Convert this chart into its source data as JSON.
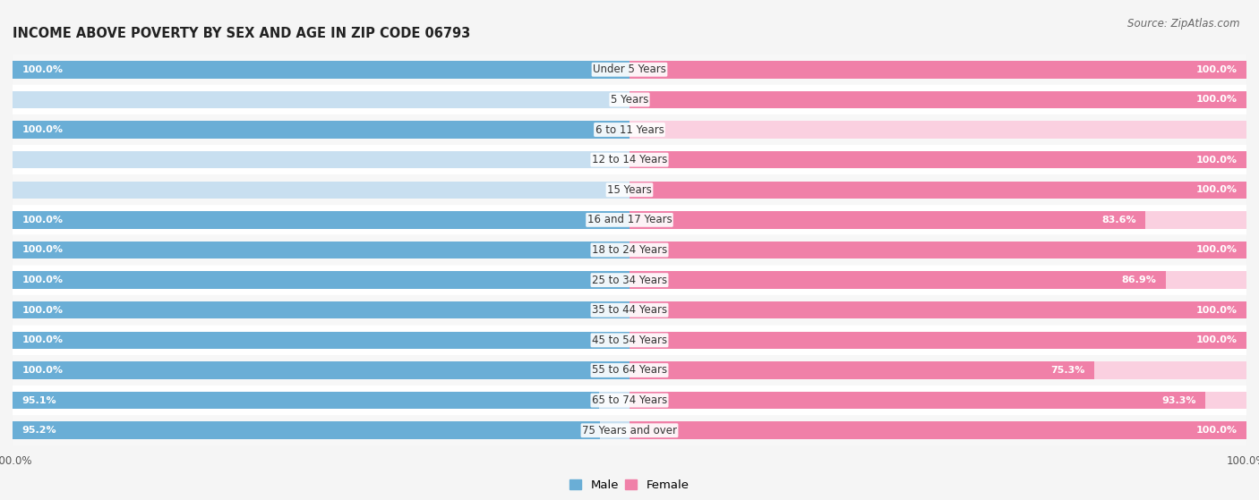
{
  "title": "INCOME ABOVE POVERTY BY SEX AND AGE IN ZIP CODE 06793",
  "source": "Source: ZipAtlas.com",
  "categories": [
    "Under 5 Years",
    "5 Years",
    "6 to 11 Years",
    "12 to 14 Years",
    "15 Years",
    "16 and 17 Years",
    "18 to 24 Years",
    "25 to 34 Years",
    "35 to 44 Years",
    "45 to 54 Years",
    "55 to 64 Years",
    "65 to 74 Years",
    "75 Years and over"
  ],
  "male": [
    100.0,
    0.0,
    100.0,
    0.0,
    0.0,
    100.0,
    100.0,
    100.0,
    100.0,
    100.0,
    100.0,
    95.1,
    95.2
  ],
  "female": [
    100.0,
    100.0,
    0.0,
    100.0,
    100.0,
    83.6,
    100.0,
    86.9,
    100.0,
    100.0,
    75.3,
    93.3,
    100.0
  ],
  "male_color": "#6aaed6",
  "female_color": "#f080a8",
  "bar_bg_male": "#c8dff0",
  "bar_bg_female": "#fad0e0",
  "row_colors": [
    "#f7f7f7",
    "#ffffff"
  ],
  "bg_color": "#f5f5f5",
  "label_fontsize": 8.5,
  "value_fontsize": 8.0,
  "title_fontsize": 10.5,
  "source_fontsize": 8.5
}
